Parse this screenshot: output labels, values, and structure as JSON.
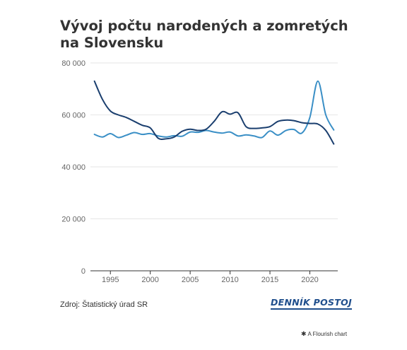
{
  "title": "Vývoj počtu narodených a zomretých na Slovensku",
  "source": "Zdroj: Štatistický úrad SR",
  "brand": "DENNÍK POSTOJ",
  "credit": "A Flourish chart",
  "credit_icon": "asterisk-icon",
  "colors": {
    "births": "#1a3e6e",
    "deaths": "#3a8fc6",
    "grid": "#e6e6e6",
    "axis": "#333333"
  },
  "chart_data": {
    "type": "line",
    "title": "Vývoj počtu narodených a zomretých na Slovensku",
    "xlabel": "",
    "ylabel": "",
    "xlim": [
      1992.5,
      2023.5
    ],
    "ylim": [
      0,
      80000
    ],
    "grid": true,
    "legend": "none",
    "x_ticks": [
      1995,
      2000,
      2005,
      2010,
      2015,
      2020
    ],
    "y_ticks": [
      0,
      20000,
      40000,
      60000,
      80000
    ],
    "x_tick_labels": [
      "1995",
      "2000",
      "2005",
      "2010",
      "2015",
      "2020"
    ],
    "y_tick_labels": [
      "0",
      "20 000",
      "40 000",
      "60 000",
      "80 000"
    ],
    "x": [
      1993,
      1994,
      1995,
      1996,
      1997,
      1998,
      1999,
      2000,
      2001,
      2002,
      2003,
      2004,
      2005,
      2006,
      2007,
      2008,
      2009,
      2010,
      2011,
      2012,
      2013,
      2014,
      2015,
      2016,
      2017,
      2018,
      2019,
      2020,
      2021,
      2022,
      2023
    ],
    "series": [
      {
        "color": "#1a3e6e",
        "values": [
          73000,
          66000,
          61500,
          60000,
          59000,
          57500,
          56000,
          55000,
          51000,
          50800,
          51500,
          53700,
          54500,
          54000,
          54500,
          57500,
          61200,
          60300,
          60800,
          55500,
          54800,
          55000,
          55500,
          57500,
          58000,
          57800,
          57000,
          56700,
          56500,
          54000,
          48800
        ]
      },
      {
        "color": "#3a8fc6",
        "values": [
          52500,
          51500,
          52800,
          51300,
          52200,
          53200,
          52500,
          52800,
          51900,
          51500,
          52000,
          51800,
          53400,
          53300,
          54000,
          53400,
          53000,
          53400,
          51900,
          52300,
          51900,
          51300,
          53800,
          52200,
          54000,
          54400,
          53000,
          59000,
          73000,
          60000,
          54200
        ]
      }
    ]
  }
}
